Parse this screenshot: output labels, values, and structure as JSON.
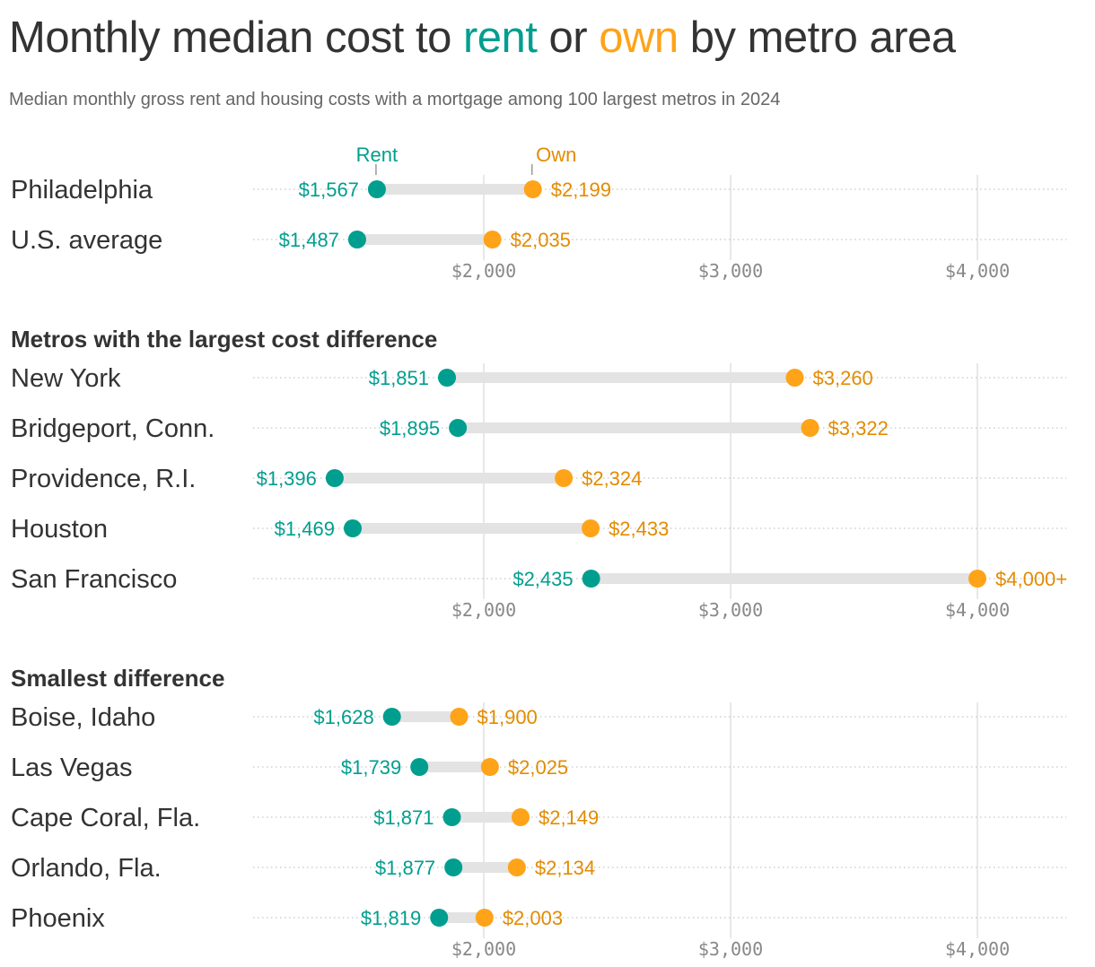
{
  "title": {
    "pre": "Monthly median cost to ",
    "rent": "rent",
    "mid": " or ",
    "own": "own",
    "post": " by metro area"
  },
  "subtitle": "Median monthly gross rent and housing costs with a mortgage among 100 largest metros in 2024",
  "colors": {
    "rent": "#009e8f",
    "own": "#ffa319",
    "own_text": "#e38b00",
    "bar": "#e3e3e3",
    "grid": "#e0e0e0"
  },
  "chart_data": {
    "type": "dumbbell",
    "xlim": [
      1000,
      4350
    ],
    "ticks": [
      2000,
      3000,
      4000
    ],
    "tick_labels": [
      "$2,000",
      "$3,000",
      "$4,000"
    ],
    "legend": {
      "rent": "Rent",
      "own": "Own"
    },
    "panels": [
      {
        "heading": "",
        "rows": [
          {
            "name": "Philadelphia",
            "rent": 1567,
            "own": 2199,
            "rent_label": "$1,567",
            "own_label": "$2,199"
          },
          {
            "name": "U.S. average",
            "rent": 1487,
            "own": 2035,
            "rent_label": "$1,487",
            "own_label": "$2,035"
          }
        ]
      },
      {
        "heading": "Metros with the largest cost difference",
        "rows": [
          {
            "name": "New York",
            "rent": 1851,
            "own": 3260,
            "rent_label": "$1,851",
            "own_label": "$3,260"
          },
          {
            "name": "Bridgeport, Conn.",
            "rent": 1895,
            "own": 3322,
            "rent_label": "$1,895",
            "own_label": "$3,322"
          },
          {
            "name": "Providence, R.I.",
            "rent": 1396,
            "own": 2324,
            "rent_label": "$1,396",
            "own_label": "$2,324"
          },
          {
            "name": "Houston",
            "rent": 1469,
            "own": 2433,
            "rent_label": "$1,469",
            "own_label": "$2,433"
          },
          {
            "name": "San Francisco",
            "rent": 2435,
            "own": 4000,
            "rent_label": "$2,435",
            "own_label": "$4,000+"
          }
        ]
      },
      {
        "heading": "Smallest difference",
        "rows": [
          {
            "name": "Boise, Idaho",
            "rent": 1628,
            "own": 1900,
            "rent_label": "$1,628",
            "own_label": "$1,900"
          },
          {
            "name": "Las Vegas",
            "rent": 1739,
            "own": 2025,
            "rent_label": "$1,739",
            "own_label": "$2,025"
          },
          {
            "name": "Cape Coral, Fla.",
            "rent": 1871,
            "own": 2149,
            "rent_label": "$1,871",
            "own_label": "$2,149"
          },
          {
            "name": "Orlando, Fla.",
            "rent": 1877,
            "own": 2134,
            "rent_label": "$1,877",
            "own_label": "$2,134"
          },
          {
            "name": "Phoenix",
            "rent": 1819,
            "own": 2003,
            "rent_label": "$1,819",
            "own_label": "$2,003"
          }
        ]
      }
    ]
  }
}
